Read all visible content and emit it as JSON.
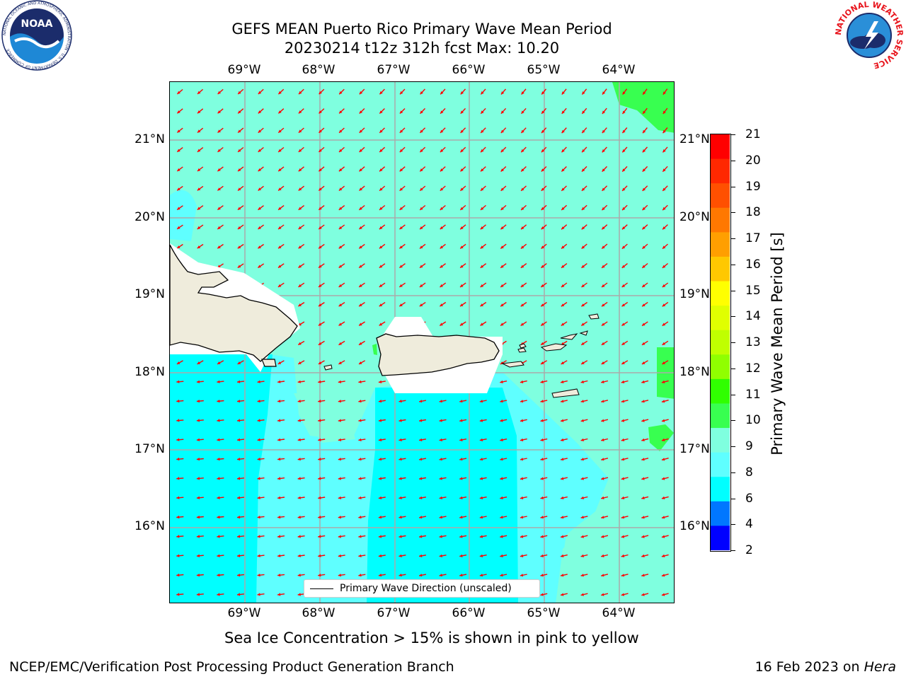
{
  "header": {
    "title_line1": "GEFS MEAN Puerto Rico Primary Wave Mean Period",
    "title_line2": "20230214 t12z 312h fcst   Max: 10.20"
  },
  "logos": {
    "noaa_text": "NOAA",
    "noaa_ring_text": "NATIONAL OCEANIC AND ATMOSPHERIC ADMINISTRATION · U.S. DEPARTMENT OF COMMERCE",
    "nws_ring_text": "NATIONAL WEATHER SERVICE"
  },
  "map": {
    "lon_labels": [
      "69°W",
      "68°W",
      "67°W",
      "66°W",
      "65°W",
      "64°W"
    ],
    "lat_labels": [
      "21°N",
      "20°N",
      "19°N",
      "18°N",
      "17°N",
      "16°N"
    ],
    "legend_label": "Primary Wave Direction (unscaled)",
    "colors": {
      "field_9_10": "#7fffdf",
      "field_8_9": "#5fffff",
      "field_6_8": "#00ffff",
      "field_10_11": "#38ff50",
      "land": "#efecdc",
      "no_data": "#ffffff",
      "grid": "#aaaaaa",
      "arrow": "#ff0000"
    }
  },
  "colorbar": {
    "label": "Primary Wave Mean Period [s]",
    "ticks": [
      "21",
      "20",
      "19",
      "18",
      "17",
      "16",
      "15",
      "14",
      "13",
      "12",
      "11",
      "10",
      "9",
      "8",
      "6",
      "4",
      "2"
    ],
    "colors_top_to_bottom": [
      "#ff0000",
      "#ff2800",
      "#ff5000",
      "#ff7800",
      "#ff9f00",
      "#ffc800",
      "#ffff00",
      "#e0ff00",
      "#c0ff00",
      "#90ff00",
      "#30ff00",
      "#38ff50",
      "#7fffdf",
      "#5fffff",
      "#00ffff",
      "#0077ff",
      "#0000ff"
    ]
  },
  "notes": {
    "sea_ice": "Sea Ice Concentration > 15% is shown in pink to yellow"
  },
  "footer": {
    "left": "NCEP/EMC/Verification Post Processing Product Generation Branch",
    "right_prefix": "16 Feb 2023 on ",
    "right_machine": "Hera"
  }
}
